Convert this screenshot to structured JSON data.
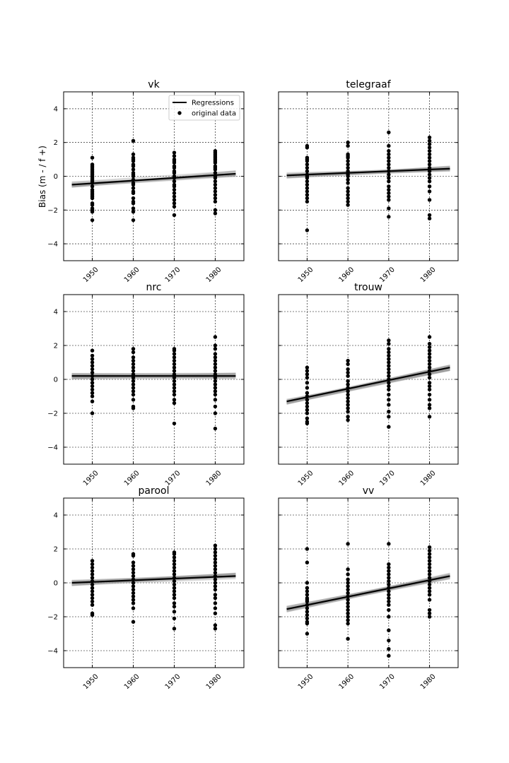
{
  "figure": {
    "ylabel": "Bias (m - / f +)",
    "legend": {
      "position": "top-right",
      "entries": [
        {
          "label": "Regressions",
          "kind": "line"
        },
        {
          "label": "original data",
          "kind": "point"
        }
      ]
    }
  },
  "chart_data": [
    {
      "type": "scatter",
      "title": "vk",
      "xlim": [
        1943,
        1987
      ],
      "ylim": [
        -5,
        5
      ],
      "xticks": [
        1950,
        1960,
        1970,
        1980
      ],
      "yticks": [
        -4,
        -2,
        0,
        2,
        4
      ],
      "grid": true,
      "has_legend": true,
      "show_ylabel": true,
      "show_yticklabels": true,
      "regression": {
        "x": [
          1945,
          1985
        ],
        "y": [
          -0.5,
          0.15
        ]
      },
      "points": [
        {
          "x": 1950,
          "y": [
            1.1,
            0.7,
            0.6,
            0.5,
            0.4,
            0.3,
            0.2,
            0.1,
            0.0,
            -0.1,
            -0.2,
            -0.3,
            -0.4,
            -0.6,
            -0.8,
            -0.9,
            -1.0,
            -1.1,
            -1.2,
            -1.3,
            -1.6,
            -1.7,
            -1.9,
            -2.0,
            -2.1,
            -2.6
          ]
        },
        {
          "x": 1960,
          "y": [
            2.1,
            1.3,
            1.1,
            1.0,
            0.9,
            0.7,
            0.6,
            0.4,
            0.2,
            0.1,
            0.0,
            -0.2,
            -0.4,
            -0.5,
            -0.7,
            -0.9,
            -1.0,
            -1.3,
            -1.5,
            -1.6,
            -1.9,
            -2.1,
            -2.6
          ]
        },
        {
          "x": 1970,
          "y": [
            1.4,
            1.2,
            1.0,
            0.9,
            0.8,
            0.6,
            0.5,
            0.3,
            0.2,
            0.0,
            -0.1,
            -0.3,
            -0.5,
            -0.6,
            -0.8,
            -1.0,
            -1.2,
            -1.4,
            -1.6,
            -1.8,
            -2.3
          ]
        },
        {
          "x": 1980,
          "y": [
            1.5,
            1.4,
            1.3,
            1.2,
            1.1,
            1.0,
            0.9,
            0.8,
            0.6,
            0.5,
            0.4,
            0.2,
            0.0,
            -0.1,
            -0.3,
            -0.5,
            -0.7,
            -0.9,
            -1.1,
            -1.3,
            -1.5,
            -2.0,
            -2.2
          ]
        }
      ]
    },
    {
      "type": "scatter",
      "title": "telegraaf",
      "xlim": [
        1943,
        1987
      ],
      "ylim": [
        -5,
        5
      ],
      "xticks": [
        1950,
        1960,
        1970,
        1980
      ],
      "yticks": [
        -4,
        -2,
        0,
        2,
        4
      ],
      "grid": true,
      "has_legend": false,
      "show_ylabel": false,
      "show_yticklabels": false,
      "regression": {
        "x": [
          1945,
          1985
        ],
        "y": [
          0.05,
          0.45
        ]
      },
      "points": [
        {
          "x": 1950,
          "y": [
            1.8,
            1.7,
            1.1,
            1.0,
            0.9,
            0.7,
            0.5,
            0.3,
            0.1,
            0.0,
            -0.1,
            -0.3,
            -0.5,
            -0.7,
            -0.9,
            -1.1,
            -1.3,
            -1.5,
            -3.2
          ]
        },
        {
          "x": 1960,
          "y": [
            2.0,
            1.8,
            1.3,
            1.2,
            1.1,
            0.9,
            0.7,
            0.5,
            0.3,
            0.1,
            0.0,
            -0.2,
            -0.4,
            -0.7,
            -0.9,
            -1.1,
            -1.3,
            -1.5,
            -1.7
          ]
        },
        {
          "x": 1970,
          "y": [
            2.6,
            1.8,
            1.5,
            1.3,
            1.1,
            0.9,
            0.7,
            0.5,
            0.3,
            0.1,
            -0.1,
            -0.3,
            -0.6,
            -0.8,
            -1.0,
            -1.2,
            -1.4,
            -1.9,
            -2.4
          ]
        },
        {
          "x": 1980,
          "y": [
            2.3,
            2.1,
            1.9,
            1.7,
            1.5,
            1.3,
            1.1,
            0.9,
            0.7,
            0.5,
            0.3,
            0.1,
            -0.1,
            -0.3,
            -0.6,
            -0.9,
            -1.4,
            -2.3,
            -2.5
          ]
        }
      ]
    },
    {
      "type": "scatter",
      "title": "nrc",
      "xlim": [
        1943,
        1987
      ],
      "ylim": [
        -5,
        5
      ],
      "xticks": [
        1950,
        1960,
        1970,
        1980
      ],
      "yticks": [
        -4,
        -2,
        0,
        2,
        4
      ],
      "grid": true,
      "has_legend": false,
      "show_ylabel": false,
      "show_yticklabels": true,
      "regression": {
        "x": [
          1945,
          1985
        ],
        "y": [
          0.2,
          0.2
        ]
      },
      "points": [
        {
          "x": 1950,
          "y": [
            1.7,
            1.4,
            1.2,
            1.0,
            0.8,
            0.6,
            0.4,
            0.2,
            0.0,
            -0.2,
            -0.4,
            -0.6,
            -0.8,
            -1.0,
            -1.3,
            -2.0
          ]
        },
        {
          "x": 1960,
          "y": [
            1.8,
            1.6,
            1.3,
            1.1,
            0.9,
            0.7,
            0.5,
            0.3,
            0.1,
            -0.1,
            -0.3,
            -0.5,
            -0.7,
            -0.9,
            -1.2,
            -1.6,
            -1.7
          ]
        },
        {
          "x": 1970,
          "y": [
            1.8,
            1.7,
            1.5,
            1.3,
            1.1,
            0.9,
            0.7,
            0.5,
            0.3,
            0.1,
            -0.1,
            -0.3,
            -0.5,
            -0.7,
            -0.9,
            -1.2,
            -1.4,
            -2.6
          ]
        },
        {
          "x": 1980,
          "y": [
            2.5,
            2.0,
            1.8,
            1.5,
            1.3,
            1.1,
            0.9,
            0.7,
            0.5,
            0.3,
            0.1,
            -0.1,
            -0.3,
            -0.5,
            -0.7,
            -0.9,
            -1.2,
            -1.6,
            -2.0,
            -2.9
          ]
        }
      ]
    },
    {
      "type": "scatter",
      "title": "trouw",
      "xlim": [
        1943,
        1987
      ],
      "ylim": [
        -5,
        5
      ],
      "xticks": [
        1950,
        1960,
        1970,
        1980
      ],
      "yticks": [
        -4,
        -2,
        0,
        2,
        4
      ],
      "grid": true,
      "has_legend": false,
      "show_ylabel": false,
      "show_yticklabels": false,
      "regression": {
        "x": [
          1945,
          1985
        ],
        "y": [
          -1.3,
          0.7
        ]
      },
      "points": [
        {
          "x": 1950,
          "y": [
            0.7,
            0.5,
            0.3,
            0.1,
            -0.2,
            -0.5,
            -0.8,
            -1.0,
            -1.2,
            -1.4,
            -1.6,
            -1.8,
            -2.0,
            -2.3,
            -2.5,
            -2.6
          ]
        },
        {
          "x": 1960,
          "y": [
            1.1,
            0.9,
            0.6,
            0.4,
            0.2,
            -0.1,
            -0.3,
            -0.5,
            -0.7,
            -0.9,
            -1.1,
            -1.3,
            -1.5,
            -1.7,
            -1.9,
            -2.2,
            -2.4
          ]
        },
        {
          "x": 1970,
          "y": [
            2.3,
            2.1,
            1.8,
            1.6,
            1.4,
            1.2,
            1.0,
            0.8,
            0.6,
            0.4,
            0.2,
            0.0,
            -0.2,
            -0.4,
            -0.6,
            -0.9,
            -1.2,
            -1.5,
            -1.9,
            -2.2,
            -2.8
          ]
        },
        {
          "x": 1980,
          "y": [
            2.5,
            2.1,
            1.9,
            1.7,
            1.5,
            1.3,
            1.1,
            0.9,
            0.7,
            0.5,
            0.3,
            0.1,
            -0.2,
            -0.4,
            -0.6,
            -0.9,
            -1.2,
            -1.5,
            -1.7,
            -2.2
          ]
        }
      ]
    },
    {
      "type": "scatter",
      "title": "parool",
      "xlim": [
        1943,
        1987
      ],
      "ylim": [
        -5,
        5
      ],
      "xticks": [
        1950,
        1960,
        1970,
        1980
      ],
      "yticks": [
        -4,
        -2,
        0,
        2,
        4
      ],
      "grid": true,
      "has_legend": false,
      "show_ylabel": false,
      "show_yticklabels": true,
      "regression": {
        "x": [
          1945,
          1985
        ],
        "y": [
          0.0,
          0.4
        ]
      },
      "points": [
        {
          "x": 1950,
          "y": [
            1.3,
            1.1,
            0.9,
            0.7,
            0.5,
            0.3,
            0.1,
            -0.1,
            -0.3,
            -0.5,
            -0.7,
            -0.9,
            -1.1,
            -1.3,
            -1.8,
            -1.9
          ]
        },
        {
          "x": 1960,
          "y": [
            1.7,
            1.6,
            1.2,
            1.0,
            0.8,
            0.6,
            0.4,
            0.2,
            0.0,
            -0.2,
            -0.4,
            -0.6,
            -0.8,
            -1.0,
            -1.2,
            -1.5,
            -2.3
          ]
        },
        {
          "x": 1970,
          "y": [
            1.8,
            1.7,
            1.5,
            1.3,
            1.1,
            0.9,
            0.7,
            0.5,
            0.3,
            0.1,
            -0.1,
            -0.3,
            -0.5,
            -0.7,
            -0.9,
            -1.2,
            -1.4,
            -1.7,
            -2.1,
            -2.7
          ]
        },
        {
          "x": 1980,
          "y": [
            2.2,
            2.0,
            1.8,
            1.6,
            1.4,
            1.2,
            1.0,
            0.8,
            0.6,
            0.4,
            0.2,
            0.0,
            -0.2,
            -0.4,
            -0.7,
            -0.9,
            -1.2,
            -1.5,
            -1.8,
            -2.5,
            -2.7
          ]
        }
      ]
    },
    {
      "type": "scatter",
      "title": "vv",
      "xlim": [
        1943,
        1987
      ],
      "ylim": [
        -5,
        5
      ],
      "xticks": [
        1950,
        1960,
        1970,
        1980
      ],
      "yticks": [
        -4,
        -2,
        0,
        2,
        4
      ],
      "grid": true,
      "has_legend": false,
      "show_ylabel": false,
      "show_yticklabels": false,
      "regression": {
        "x": [
          1945,
          1985
        ],
        "y": [
          -1.55,
          0.4
        ]
      },
      "points": [
        {
          "x": 1950,
          "y": [
            2.0,
            1.2,
            0.0,
            -0.3,
            -0.5,
            -0.7,
            -0.9,
            -1.0,
            -1.1,
            -1.3,
            -1.5,
            -1.7,
            -1.9,
            -2.1,
            -2.3,
            -2.4,
            -3.0
          ]
        },
        {
          "x": 1960,
          "y": [
            2.3,
            0.8,
            0.5,
            0.2,
            0.0,
            -0.2,
            -0.4,
            -0.6,
            -0.8,
            -1.0,
            -1.2,
            -1.4,
            -1.6,
            -1.8,
            -2.0,
            -2.2,
            -2.4,
            -3.3
          ]
        },
        {
          "x": 1970,
          "y": [
            2.3,
            1.1,
            0.9,
            0.7,
            0.5,
            0.3,
            0.1,
            -0.1,
            -0.3,
            -0.5,
            -0.7,
            -0.9,
            -1.1,
            -1.3,
            -1.6,
            -2.0,
            -2.8,
            -3.4,
            -3.9,
            -4.3
          ]
        },
        {
          "x": 1980,
          "y": [
            2.1,
            1.9,
            1.7,
            1.5,
            1.3,
            1.1,
            0.9,
            0.7,
            0.5,
            0.3,
            0.1,
            -0.1,
            -0.3,
            -0.5,
            -0.7,
            -1.0,
            -1.6,
            -1.8,
            -2.0
          ]
        }
      ]
    }
  ]
}
